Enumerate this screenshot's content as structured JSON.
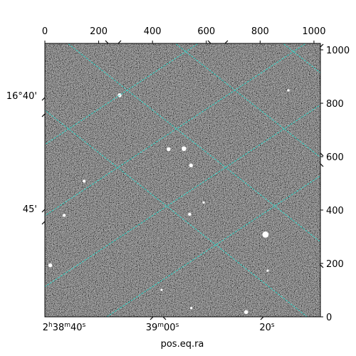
{
  "chart_data": {
    "type": "image",
    "colormap": "gray",
    "pixel_axes": {
      "x_range": [
        0,
        1024
      ],
      "y_range": [
        0,
        1024
      ],
      "x_ticks": [
        "0",
        "200",
        "400",
        "600",
        "800",
        "1000"
      ],
      "x_tick_values": [
        0,
        200,
        400,
        600,
        800,
        1000
      ],
      "y_ticks": [
        "0",
        "200",
        "400",
        "600",
        "800",
        "1000"
      ],
      "y_tick_values": [
        0,
        200,
        400,
        600,
        800,
        1000
      ]
    },
    "world_axes": {
      "ra_label": "pos.eq.ra",
      "ra_ticks": [
        {
          "h": "2",
          "hs": "h",
          "m": "38",
          "ms": "m",
          "s": "40",
          "ss": "s"
        },
        {
          "h": "",
          "hs": "",
          "m": "39",
          "ms": "m",
          "s": "00",
          "ss": "s"
        },
        {
          "h": "",
          "hs": "",
          "m": "",
          "ms": "",
          "s": "20",
          "ss": "s"
        }
      ],
      "dec_ticks": [
        "16°40'",
        "45'"
      ]
    },
    "grid": true,
    "grid_color": "#30d5c8",
    "stars": [
      {
        "x": 278,
        "y": 830,
        "r": 5
      },
      {
        "x": 460,
        "y": 628,
        "r": 5
      },
      {
        "x": 517,
        "y": 630,
        "r": 6
      },
      {
        "x": 543,
        "y": 567,
        "r": 5
      },
      {
        "x": 146,
        "y": 508,
        "r": 4
      },
      {
        "x": 72,
        "y": 380,
        "r": 4
      },
      {
        "x": 538,
        "y": 384,
        "r": 4
      },
      {
        "x": 820,
        "y": 308,
        "r": 8
      },
      {
        "x": 20,
        "y": 193,
        "r": 5
      },
      {
        "x": 828,
        "y": 173,
        "r": 3
      },
      {
        "x": 434,
        "y": 101,
        "r": 3
      },
      {
        "x": 748,
        "y": 18,
        "r": 5
      },
      {
        "x": 544,
        "y": 33,
        "r": 3
      },
      {
        "x": 590,
        "y": 428,
        "r": 3
      },
      {
        "x": 905,
        "y": 848,
        "r": 3
      }
    ]
  }
}
